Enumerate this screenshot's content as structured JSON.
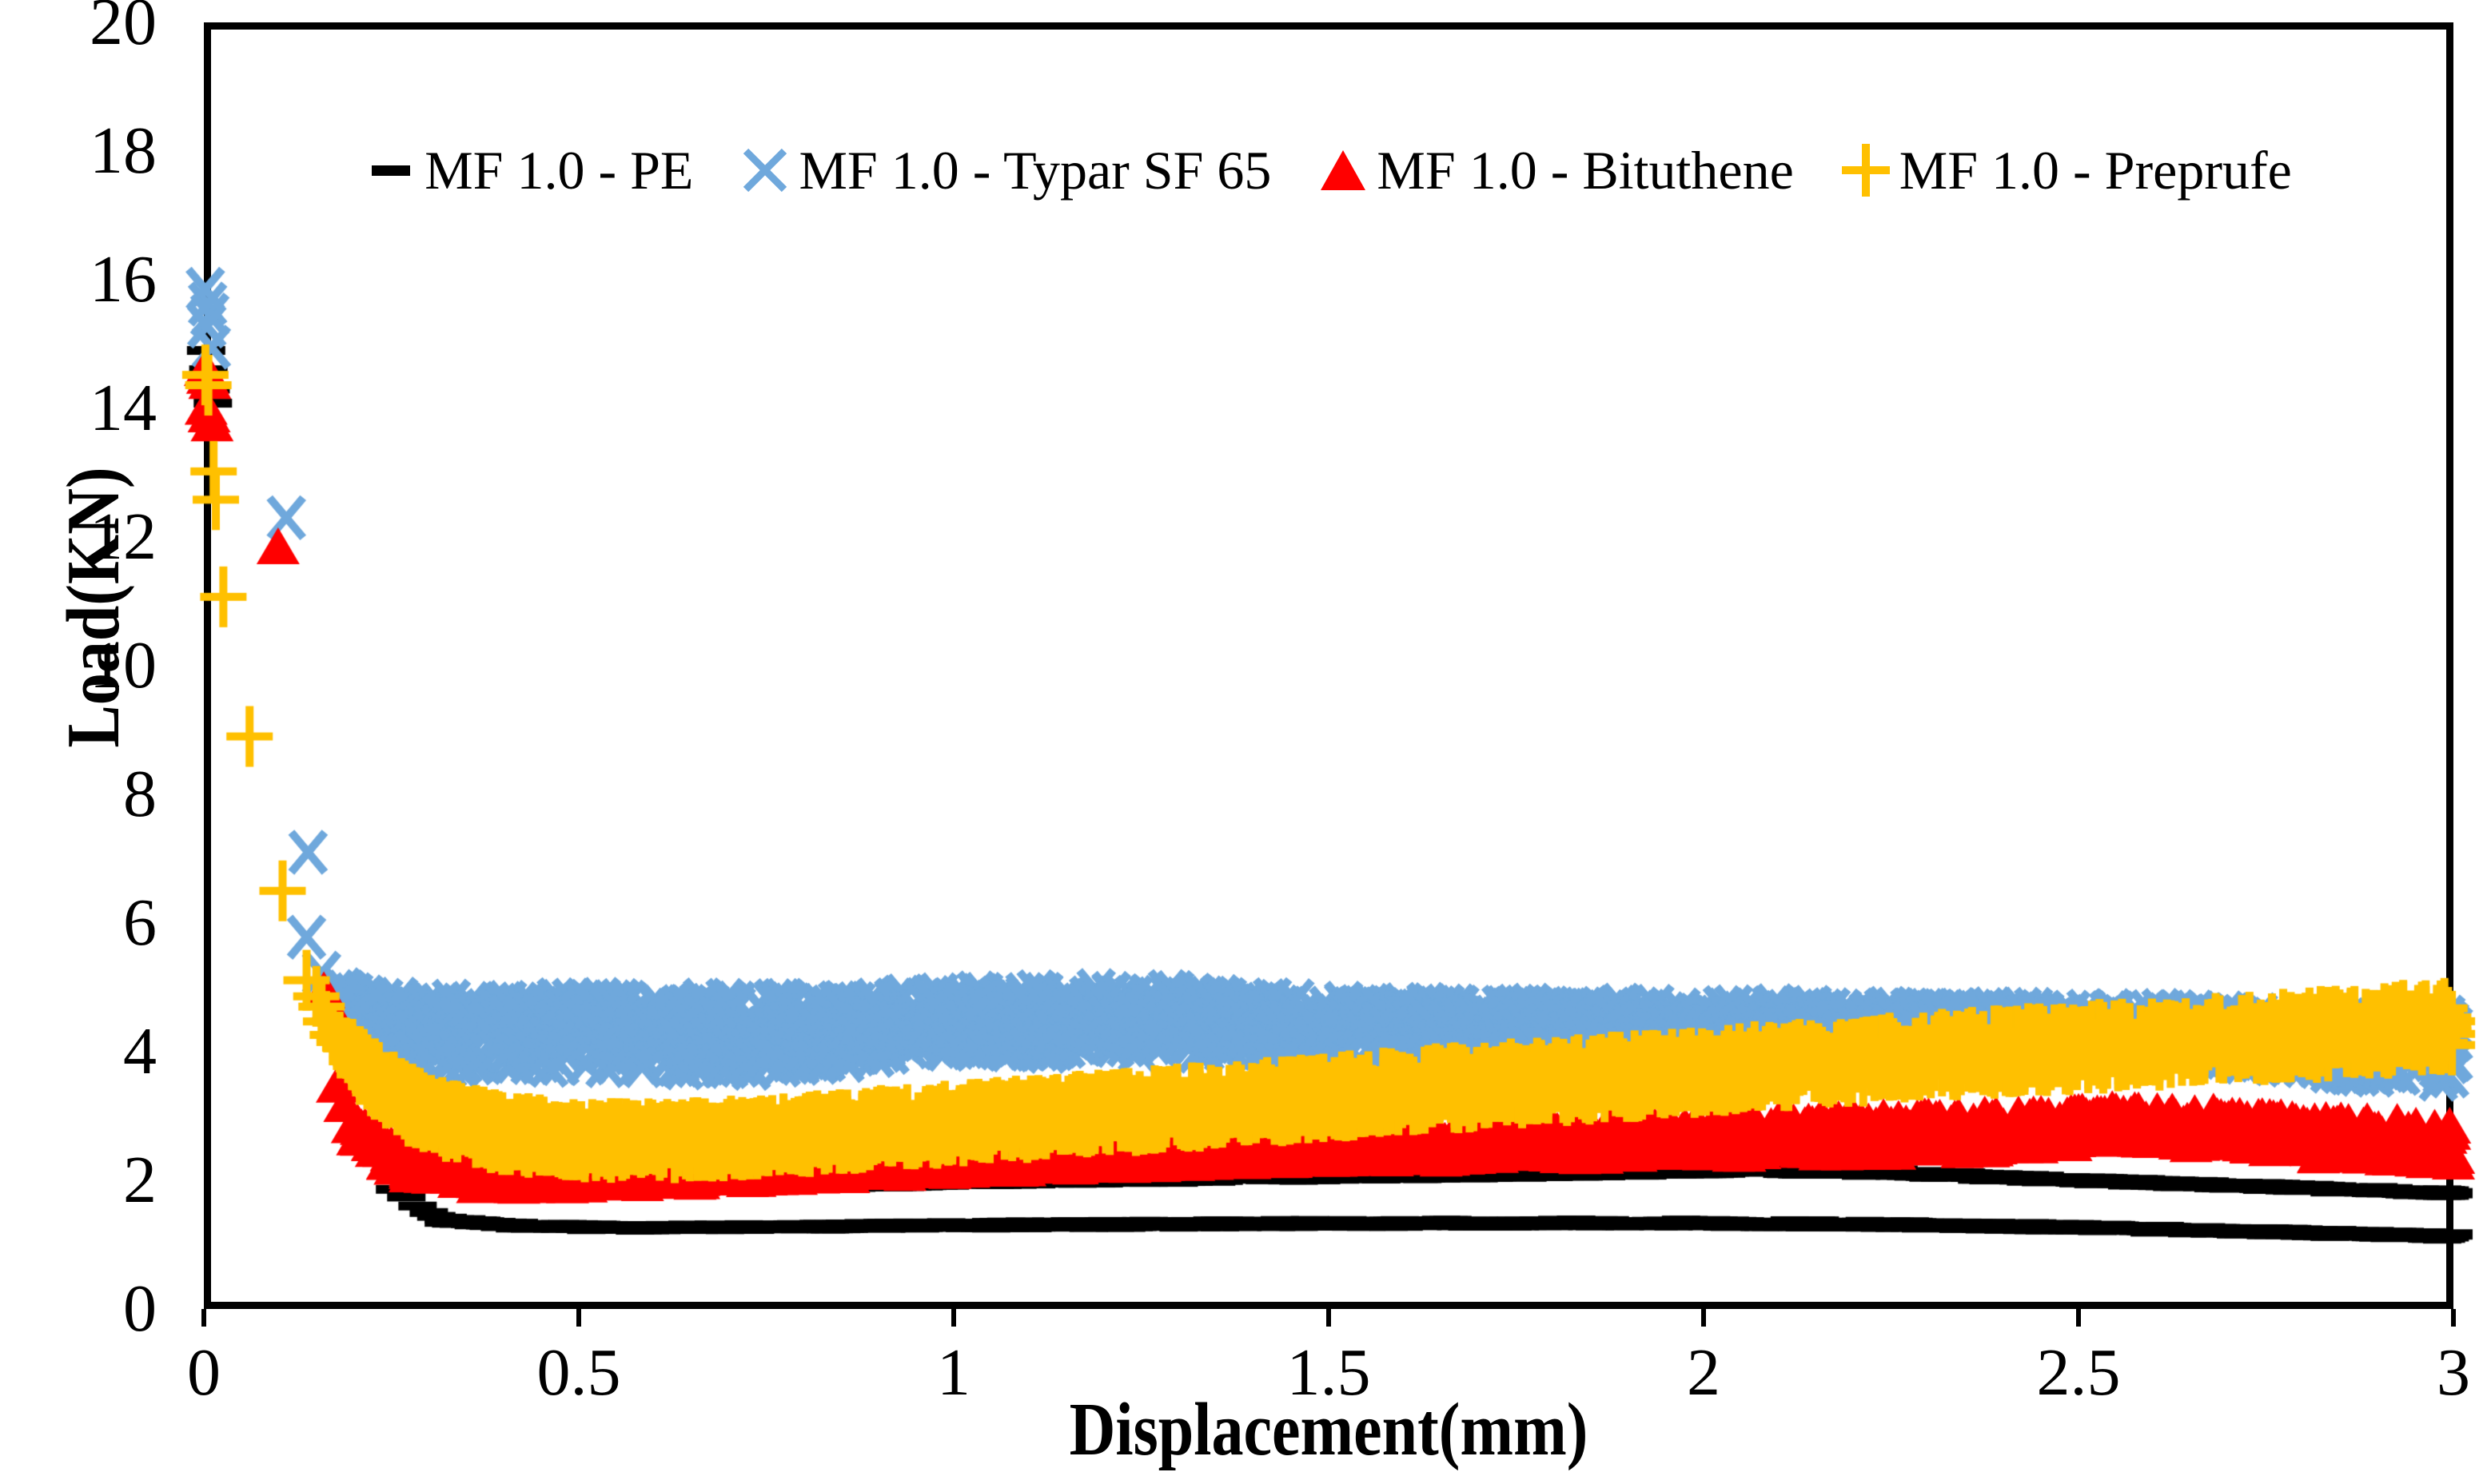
{
  "page": {
    "background": "#ffffff",
    "frame_color": "#000000"
  },
  "chart_data": {
    "type": "scatter",
    "title": "",
    "xlabel": "Displacement(mm)",
    "ylabel": "Load(KN)",
    "xlim": [
      0,
      3
    ],
    "ylim": [
      0,
      20
    ],
    "grid": false,
    "legend_position": "top-center",
    "x_tick_values": [
      0,
      0.5,
      1,
      1.5,
      2,
      2.5,
      3
    ],
    "x_tick_labels": [
      "0",
      "0.5",
      "1",
      "1.5",
      "2",
      "2.5",
      "3"
    ],
    "y_tick_values": [
      0,
      2,
      4,
      6,
      8,
      10,
      12,
      14,
      16,
      18,
      20
    ],
    "y_tick_labels": [
      "0",
      "2",
      "4",
      "6",
      "8",
      "10",
      "12",
      "14",
      "16",
      "18",
      "20"
    ],
    "series": [
      {
        "name": "MF 1.0 - PE",
        "marker": "dash",
        "color": "#000000",
        "points": [
          [
            0.003,
            14.9
          ],
          [
            0.006,
            14.6
          ],
          [
            0.009,
            14.3
          ],
          [
            0.012,
            14.08
          ],
          [
            0.255,
            1.86
          ],
          [
            0.27,
            1.74
          ],
          [
            0.285,
            1.6
          ],
          [
            0.3,
            1.5
          ],
          [
            0.31,
            1.44
          ]
        ],
        "bands": [
          {
            "anchors": [
              [
                0.32,
                1.38,
                0.04
              ],
              [
                0.4,
                1.3,
                0.04
              ],
              [
                0.55,
                1.26,
                0.04
              ],
              [
                0.8,
                1.28,
                0.04
              ],
              [
                1.1,
                1.31,
                0.05
              ],
              [
                1.5,
                1.33,
                0.05
              ],
              [
                1.9,
                1.34,
                0.05
              ],
              [
                2.2,
                1.32,
                0.05
              ],
              [
                2.5,
                1.27,
                0.05
              ],
              [
                2.75,
                1.2,
                0.05
              ],
              [
                3.0,
                1.13,
                0.05
              ]
            ]
          },
          {
            "anchors": [
              [
                0.87,
                1.92,
                0.04
              ],
              [
                1.0,
                1.96,
                0.04
              ],
              [
                1.2,
                2.0,
                0.05
              ],
              [
                1.5,
                2.05,
                0.05
              ],
              [
                1.8,
                2.1,
                0.05
              ],
              [
                2.05,
                2.15,
                0.05
              ],
              [
                2.25,
                2.12,
                0.05
              ],
              [
                2.45,
                2.02,
                0.05
              ],
              [
                2.7,
                1.92,
                0.05
              ],
              [
                3.0,
                1.8,
                0.05
              ]
            ]
          }
        ]
      },
      {
        "name": "MF 1.0 - Typar SF 65",
        "marker": "x",
        "color": "#6FA8DC",
        "points": [
          [
            0.002,
            15.85
          ],
          [
            0.005,
            15.62
          ],
          [
            0.008,
            15.45
          ],
          [
            0.004,
            15.28
          ],
          [
            0.01,
            14.95
          ],
          [
            0.11,
            12.3
          ],
          [
            0.139,
            7.1
          ],
          [
            0.137,
            5.78
          ],
          [
            0.157,
            5.22
          ]
        ],
        "bands": [
          {
            "anchors": [
              [
                0.175,
                4.92,
                0.1
              ],
              [
                0.2,
                4.6,
                0.3
              ],
              [
                0.28,
                4.25,
                0.55
              ],
              [
                0.5,
                4.3,
                0.52
              ],
              [
                0.75,
                4.25,
                0.55
              ],
              [
                1.0,
                4.45,
                0.45
              ],
              [
                1.2,
                4.5,
                0.5
              ],
              [
                1.35,
                4.45,
                0.45
              ],
              [
                1.5,
                4.4,
                0.36
              ],
              [
                1.8,
                4.38,
                0.35
              ],
              [
                2.1,
                4.37,
                0.35
              ],
              [
                2.4,
                4.34,
                0.35
              ],
              [
                2.65,
                4.28,
                0.36
              ],
              [
                2.85,
                4.08,
                0.42
              ],
              [
                3.0,
                4.05,
                0.5
              ]
            ]
          }
        ]
      },
      {
        "name": "MF 1.0 - Bituthene",
        "marker": "triangle",
        "color": "#FF0000",
        "points": [
          [
            0.002,
            14.62
          ],
          [
            0.005,
            14.5
          ],
          [
            0.008,
            14.42
          ],
          [
            0.003,
            14.02
          ],
          [
            0.007,
            13.9
          ],
          [
            0.011,
            13.76
          ],
          [
            0.099,
            11.85
          ],
          [
            0.16,
            4.95
          ],
          [
            0.168,
            4.7
          ],
          [
            0.178,
            3.48
          ],
          [
            0.188,
            3.18
          ],
          [
            0.198,
            2.85
          ]
        ],
        "bands": [
          {
            "anchors": [
              [
                0.205,
                2.78,
                0.14
              ],
              [
                0.24,
                2.45,
                0.17
              ],
              [
                0.28,
                2.25,
                0.19
              ],
              [
                0.35,
                2.12,
                0.2
              ],
              [
                0.45,
                2.1,
                0.2
              ],
              [
                0.6,
                2.14,
                0.2
              ],
              [
                0.8,
                2.26,
                0.22
              ],
              [
                1.0,
                2.36,
                0.22
              ],
              [
                1.2,
                2.46,
                0.24
              ],
              [
                1.4,
                2.53,
                0.25
              ],
              [
                1.6,
                2.58,
                0.26
              ],
              [
                1.85,
                2.64,
                0.27
              ],
              [
                2.1,
                2.68,
                0.27
              ],
              [
                2.35,
                2.73,
                0.28
              ],
              [
                2.55,
                2.86,
                0.25
              ],
              [
                2.68,
                2.8,
                0.27
              ],
              [
                2.82,
                2.66,
                0.28
              ],
              [
                3.0,
                2.58,
                0.3
              ]
            ]
          }
        ]
      },
      {
        "name": "MF 1.0 - Preprufe",
        "marker": "plus",
        "color": "#FFC000",
        "points": [
          [
            0.002,
            14.52
          ],
          [
            0.006,
            14.36
          ],
          [
            0.013,
            13.02
          ],
          [
            0.016,
            12.58
          ],
          [
            0.026,
            11.07
          ],
          [
            0.061,
            8.9
          ],
          [
            0.105,
            6.5
          ],
          [
            0.137,
            5.11
          ],
          [
            0.15,
            4.86
          ],
          [
            0.157,
            4.7
          ],
          [
            0.163,
            4.47
          ],
          [
            0.172,
            4.26
          ],
          [
            0.181,
            4.15
          ],
          [
            0.19,
            4.05
          ]
        ],
        "bands": [
          {
            "anchors": [
              [
                0.198,
                3.92,
                0.16
              ],
              [
                0.23,
                3.55,
                0.18
              ],
              [
                0.27,
                3.2,
                0.19
              ],
              [
                0.32,
                2.95,
                0.19
              ],
              [
                0.4,
                2.73,
                0.19
              ],
              [
                0.52,
                2.62,
                0.19
              ],
              [
                0.62,
                2.61,
                0.19
              ],
              [
                0.78,
                2.7,
                0.2
              ],
              [
                0.95,
                2.84,
                0.21
              ],
              [
                1.15,
                3.0,
                0.22
              ],
              [
                1.4,
                3.2,
                0.23
              ],
              [
                1.62,
                3.4,
                0.24
              ],
              [
                1.85,
                3.58,
                0.25
              ],
              [
                2.1,
                3.78,
                0.25
              ],
              [
                2.35,
                3.97,
                0.26
              ],
              [
                2.6,
                4.13,
                0.27
              ],
              [
                2.8,
                4.25,
                0.28
              ],
              [
                3.0,
                4.4,
                0.3
              ]
            ]
          }
        ]
      }
    ]
  }
}
